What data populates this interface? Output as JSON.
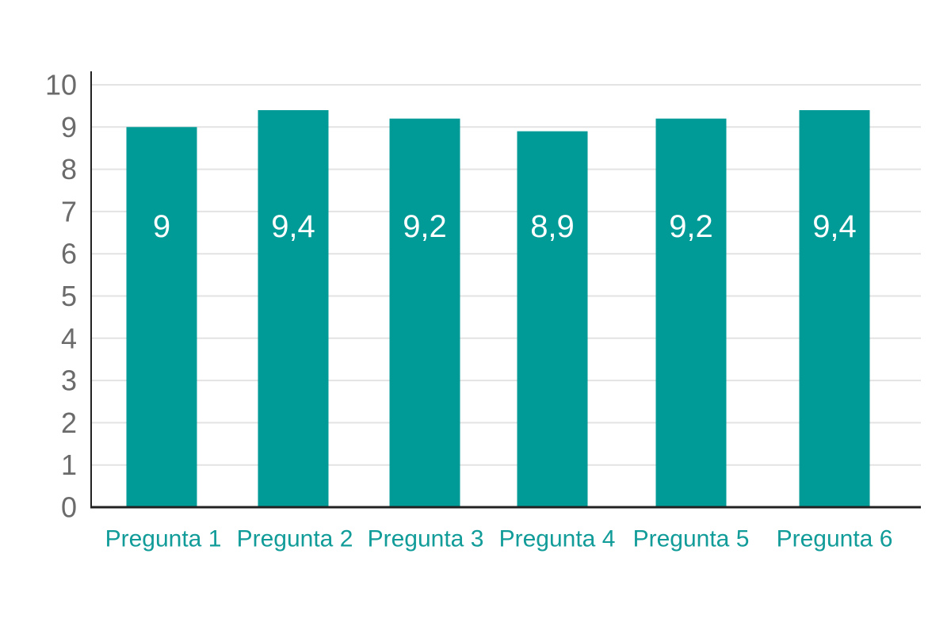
{
  "chart_data": {
    "type": "bar",
    "categories": [
      "Pregunta 1",
      "Pregunta 2",
      "Pregunta 3",
      "Pregunta 4",
      "Pregunta 5",
      "Pregunta 6"
    ],
    "values": [
      9,
      9.4,
      9.2,
      8.9,
      9.2,
      9.4
    ],
    "data_labels": [
      "9",
      "9,4",
      "9,2",
      "8,9",
      "9,2",
      "9,4"
    ],
    "y_ticks": [
      "0",
      "1",
      "2",
      "3",
      "4",
      "5",
      "6",
      "7",
      "8",
      "9",
      "10"
    ],
    "title": "",
    "xlabel": "",
    "ylabel": "",
    "ylim": [
      0,
      10
    ],
    "grid": true,
    "legend": "none",
    "colors": {
      "bar": "#009b97",
      "category_label": "#119c99",
      "tick_label": "#6b6b6b",
      "gridline": "#e3e3e3",
      "axis": "#222222",
      "data_label": "#ffffff"
    }
  }
}
